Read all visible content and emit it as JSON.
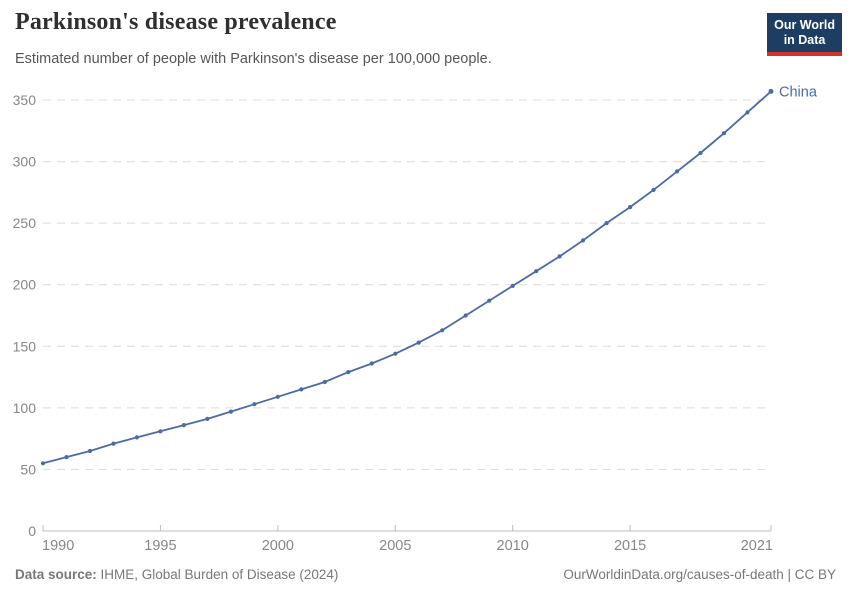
{
  "header": {
    "title": "Parkinson's disease prevalence",
    "subtitle": "Estimated number of people with Parkinson's disease per 100,000 people.",
    "logo": {
      "line1": "Our World",
      "line2": "in Data",
      "bg_color": "#1d3d63",
      "accent_color": "#d0342c"
    }
  },
  "chart_data": {
    "type": "line",
    "title": "Parkinson's disease prevalence",
    "subtitle": "Estimated number of people with Parkinson's disease per 100,000 people.",
    "xlabel": "",
    "ylabel": "",
    "xlim": [
      1990,
      2021
    ],
    "ylim": [
      0,
      350
    ],
    "grid": "horizontal-dashed",
    "legend_position": "end-of-line",
    "xticks": [
      1990,
      1995,
      2000,
      2005,
      2010,
      2015,
      2021
    ],
    "yticks": [
      0,
      50,
      100,
      150,
      200,
      250,
      300,
      350
    ],
    "x": [
      1990,
      1991,
      1992,
      1993,
      1994,
      1995,
      1996,
      1997,
      1998,
      1999,
      2000,
      2001,
      2002,
      2003,
      2004,
      2005,
      2006,
      2007,
      2008,
      2009,
      2010,
      2011,
      2012,
      2013,
      2014,
      2015,
      2016,
      2017,
      2018,
      2019,
      2020,
      2021
    ],
    "series": [
      {
        "name": "China",
        "color": "#4b6ba3",
        "values": [
          55,
          60,
          65,
          71,
          76,
          81,
          86,
          91,
          97,
          103,
          109,
          115,
          121,
          129,
          136,
          144,
          153,
          163,
          175,
          187,
          199,
          211,
          223,
          236,
          250,
          263,
          277,
          292,
          307,
          323,
          340,
          357
        ]
      }
    ]
  },
  "footer": {
    "source_label": "Data source:",
    "source_value": " IHME, Global Burden of Disease (2024)",
    "credit": "OurWorldinData.org/causes-of-death | CC BY"
  }
}
